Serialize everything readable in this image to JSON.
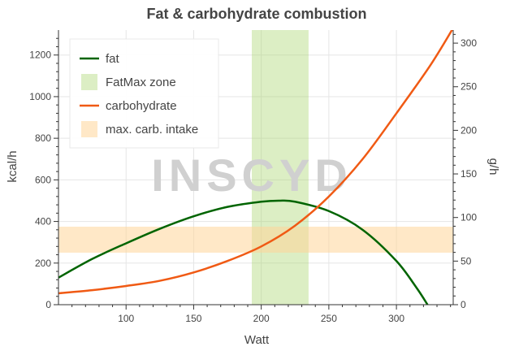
{
  "chart_data": {
    "type": "line",
    "title": "Fat & carbohydrate combustion",
    "xlabel": "Watt",
    "ylabel": "kcal/h",
    "y2label": "g/h",
    "xlim": [
      50,
      342
    ],
    "ylim": [
      0,
      1320
    ],
    "y2lim": [
      0,
      315
    ],
    "xticks": [
      100,
      150,
      200,
      250,
      300
    ],
    "yticks": [
      0,
      200,
      400,
      600,
      800,
      1000,
      1200
    ],
    "y2ticks": [
      0,
      50,
      100,
      150,
      200,
      250,
      300
    ],
    "grid": true,
    "legend_position": "top-left",
    "watermark": "INSCYD",
    "series": [
      {
        "name": "fat",
        "color": "#006400",
        "x": [
          50,
          75,
          100,
          125,
          150,
          175,
          200,
          213,
          225,
          250,
          275,
          300,
          315,
          323
        ],
        "y": [
          130,
          220,
          295,
          365,
          425,
          470,
          495,
          500,
          495,
          450,
          360,
          210,
          80,
          0
        ]
      },
      {
        "name": "carbohydrate",
        "color": "#f05a14",
        "x": [
          50,
          75,
          100,
          125,
          150,
          175,
          200,
          225,
          250,
          275,
          300,
          325,
          342
        ],
        "y": [
          55,
          70,
          90,
          115,
          155,
          210,
          280,
          380,
          520,
          700,
          920,
          1150,
          1330
        ]
      }
    ],
    "bands": [
      {
        "name": "FatMax zone",
        "axis": "x",
        "from": 193,
        "to": 235,
        "color": "#a8d46c"
      },
      {
        "name": "max. carb. intake",
        "axis": "y",
        "from": 250,
        "to": 375,
        "color": "#ffd699"
      }
    ]
  }
}
